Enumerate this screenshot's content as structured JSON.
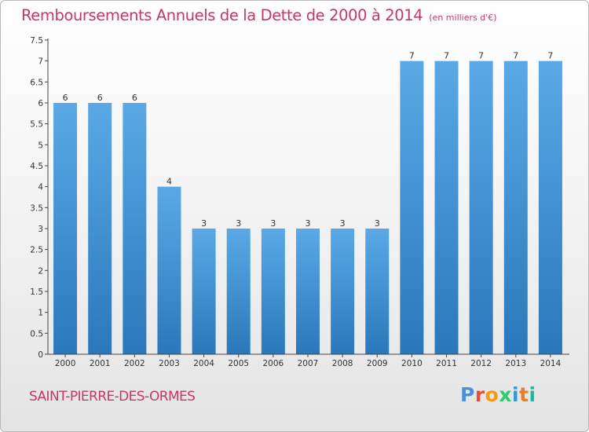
{
  "header": {
    "title": "Remboursements Annuels de la Dette de 2000 à 2014",
    "unit": "(en milliers d'€)"
  },
  "footer": {
    "commune": "SAINT-PIERRE-DES-ORMES",
    "logo_letters": [
      "P",
      "r",
      "o",
      "x",
      "i",
      "t",
      "i"
    ],
    "logo_colors": [
      "#4a90d9",
      "#e74c3c",
      "#f39c12",
      "#2ecc71",
      "#3498db",
      "#e67e22",
      "#1abc9c"
    ]
  },
  "chart_data": {
    "type": "bar",
    "title": "Remboursements Annuels de la Dette de 2000 à 2014",
    "categories": [
      "2000",
      "2001",
      "2002",
      "2003",
      "2004",
      "2005",
      "2006",
      "2007",
      "2008",
      "2009",
      "2010",
      "2011",
      "2012",
      "2013",
      "2014"
    ],
    "values": [
      6,
      6,
      6,
      4,
      3,
      3,
      3,
      3,
      3,
      3,
      7,
      7,
      7,
      7,
      7
    ],
    "data_labels": [
      "6",
      "6",
      "6",
      "4",
      "3",
      "3",
      "3",
      "3",
      "3",
      "3",
      "7",
      "7",
      "7",
      "7",
      "7"
    ],
    "ylim": [
      0,
      7.5
    ],
    "yticks": [
      0,
      0.5,
      1,
      1.5,
      2,
      2.5,
      3,
      3.5,
      4,
      4.5,
      5,
      5.5,
      6,
      6.5,
      7,
      7.5
    ],
    "ytick_labels": [
      "0",
      "0.5",
      "1",
      "1.5",
      "2",
      "2.5",
      "3",
      "3.5",
      "4",
      "4.5",
      "5",
      "5.5",
      "6",
      "6.5",
      "7",
      "7.5"
    ],
    "grid": false,
    "bar_color_top": "#5aa9e6",
    "bar_color_bottom": "#2a78bb",
    "axis_color": "#444444"
  }
}
